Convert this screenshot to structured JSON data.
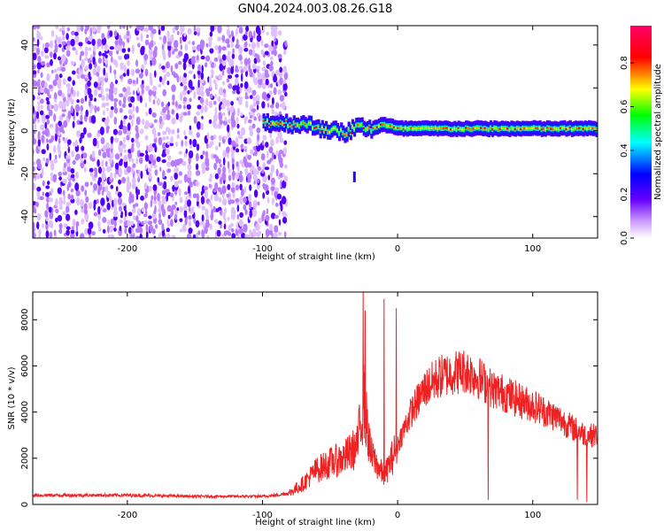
{
  "title": "GN04.2024.003.08.26.G18",
  "chart_data": [
    {
      "type": "heatmap",
      "title": "GN04.2024.003.08.26.G18",
      "xlabel": "Height of straight line (km)",
      "ylabel": "Frequency (Hz)",
      "xlim": [
        -270,
        148
      ],
      "ylim": [
        -50,
        49
      ],
      "xticks": [
        -200,
        -100,
        0,
        100
      ],
      "yticks": [
        -40,
        -20,
        0,
        20,
        40
      ],
      "grid": false,
      "colorbar": {
        "label": "Normalized spectral amplitude",
        "range": [
          0.0,
          0.97
        ],
        "ticks": [
          0.0,
          0.2,
          0.4,
          0.6,
          0.8
        ],
        "colormap": [
          "#ffffff",
          "#6600ff",
          "#0000ff",
          "#00ffff",
          "#00ff00",
          "#ffff00",
          "#ff0000",
          "#ff0066"
        ]
      },
      "regions": [
        {
          "name": "noise",
          "x_range": [
            -270,
            -82
          ],
          "freq_range": [
            -50,
            49
          ],
          "level": 0.15
        },
        {
          "name": "signal band",
          "x_range": [
            -100,
            148
          ],
          "center_freq": [
            [
              -100,
              4
            ],
            [
              -70,
              3
            ],
            [
              -40,
              -1
            ],
            [
              -30,
              2
            ],
            [
              -20,
              1
            ],
            [
              -12,
              3
            ],
            [
              0,
              1
            ],
            [
              50,
              1
            ],
            [
              100,
              1
            ],
            [
              148,
              1
            ]
          ],
          "level": 0.7
        },
        {
          "name": "spur",
          "x": -32,
          "freq_range": [
            -24,
            -19
          ],
          "level": 0.25
        }
      ]
    },
    {
      "type": "line",
      "xlabel": "Height of straight line (km)",
      "ylabel": "SNR (10 * v/v)",
      "xlim": [
        -270,
        148
      ],
      "ylim": [
        0,
        9200
      ],
      "xticks": [
        -200,
        -100,
        0,
        100
      ],
      "yticks": [
        0,
        2000,
        4000,
        6000,
        8000
      ],
      "grid": false,
      "color": "#ee2222",
      "envelope": {
        "x": [
          -270,
          -200,
          -150,
          -100,
          -90,
          -80,
          -70,
          -60,
          -50,
          -40,
          -30,
          -25,
          -20,
          -10,
          0,
          10,
          20,
          30,
          40,
          50,
          60,
          70,
          80,
          90,
          100,
          110,
          120,
          130,
          140,
          148
        ],
        "y": [
          400,
          400,
          350,
          350,
          400,
          500,
          900,
          1500,
          1800,
          2000,
          2500,
          4500,
          2200,
          1200,
          2600,
          4000,
          5000,
          5500,
          5700,
          5800,
          5500,
          5000,
          4800,
          4500,
          4300,
          4000,
          3700,
          3300,
          3000,
          3000
        ]
      },
      "spikes": [
        {
          "x": -25.5,
          "y": 9200
        },
        {
          "x": -24,
          "y": 8400
        },
        {
          "x": -10,
          "y": 8900
        },
        {
          "x": -1,
          "y": 8500
        },
        {
          "x": 67,
          "y": 200
        },
        {
          "x": 133,
          "y": 200
        },
        {
          "x": 140,
          "y": 100
        }
      ],
      "noise_amplitude": 0.35
    }
  ]
}
